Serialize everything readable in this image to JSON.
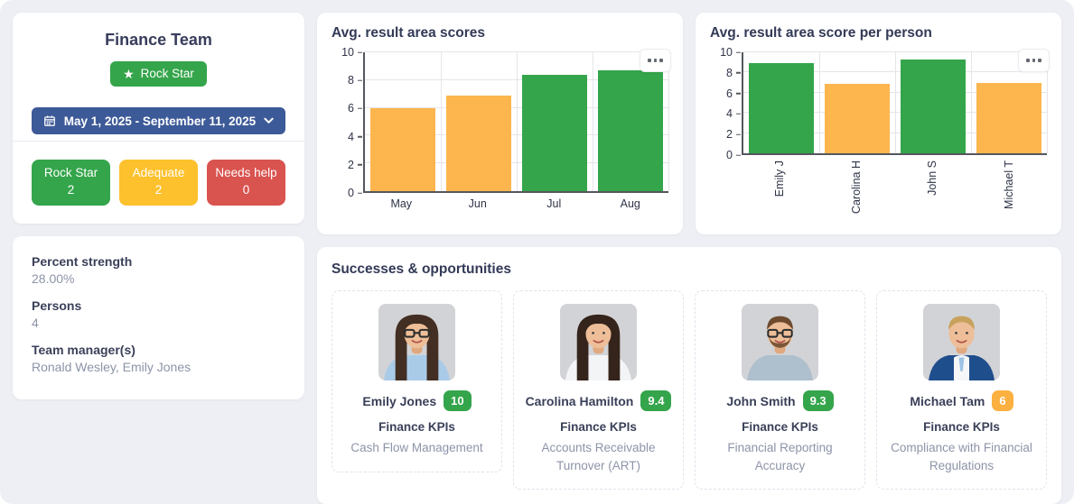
{
  "theme": {
    "page_bg": "#edeff4",
    "green": "#34a54b",
    "yellow": "#fcc12d",
    "orange": "#fbb040",
    "red": "#d9534f",
    "blue": "#3d5a98",
    "bar_orange": "#fdb54e",
    "bar_green": "#34a54b"
  },
  "team_card": {
    "title": "Finance Team",
    "status_badge": {
      "label": "Rock Star",
      "color": "#34a54b"
    },
    "date_range": {
      "label": "May 1, 2025 - September 11, 2025",
      "color": "#3d5a98"
    },
    "counters": [
      {
        "label": "Rock Star",
        "count": "2",
        "color": "#34a54b"
      },
      {
        "label": "Adequate",
        "count": "2",
        "color": "#fcc12d"
      },
      {
        "label": "Needs help",
        "count": "0",
        "color": "#d9534f"
      }
    ]
  },
  "info_card": {
    "fields": [
      {
        "label": "Percent strength",
        "value": "28.00%"
      },
      {
        "label": "Persons",
        "value": "4"
      },
      {
        "label": "Team manager(s)",
        "value": "Ronald Wesley, Emily Jones"
      }
    ]
  },
  "chart_data": [
    {
      "type": "bar",
      "title": "Avg. result area scores",
      "categories": [
        "May",
        "Jun",
        "Jul",
        "Aug"
      ],
      "values": [
        6.0,
        6.9,
        8.4,
        8.7
      ],
      "colors": [
        "#fdb54e",
        "#fdb54e",
        "#34a54b",
        "#34a54b"
      ],
      "xlabel": "",
      "ylabel": "",
      "ylim": [
        0,
        10
      ],
      "yticks": [
        0,
        2,
        4,
        6,
        8,
        10
      ],
      "grid": true,
      "xlabel_rotation": 0,
      "legend": "none"
    },
    {
      "type": "bar",
      "title": "Avg. result area score per person",
      "categories": [
        "Emily J",
        "Carolina H",
        "John S",
        "Michael T"
      ],
      "values": [
        8.9,
        6.9,
        9.3,
        7.0
      ],
      "colors": [
        "#34a54b",
        "#fdb54e",
        "#34a54b",
        "#fdb54e"
      ],
      "xlabel": "",
      "ylabel": "",
      "ylim": [
        0,
        10
      ],
      "yticks": [
        0,
        2,
        4,
        6,
        8,
        10
      ],
      "grid": true,
      "xlabel_rotation": 90,
      "legend": "none"
    }
  ],
  "successes": {
    "title": "Successes & opportunities",
    "people": [
      {
        "name": "Emily Jones",
        "score": "10",
        "score_color": "#34a54b",
        "kpi": "Finance KPIs",
        "area": "Cash Flow Management",
        "avatar": {
          "style": "long",
          "hair": "#422e22",
          "shirt": "#a9cbe8",
          "glasses": true,
          "beard": false,
          "suit": false
        }
      },
      {
        "name": "Carolina Hamilton",
        "score": "9.4",
        "score_color": "#34a54b",
        "kpi": "Finance KPIs",
        "area": "Accounts Receivable Turnover (ART)",
        "avatar": {
          "style": "long",
          "hair": "#35241b",
          "shirt": "#f3f4f6",
          "glasses": false,
          "beard": false,
          "suit": false
        }
      },
      {
        "name": "John Smith",
        "score": "9.3",
        "score_color": "#34a54b",
        "kpi": "Finance KPIs",
        "area": "Financial Reporting Accuracy",
        "avatar": {
          "style": "short",
          "hair": "#6e4b2e",
          "shirt": "#aebfcd",
          "glasses": true,
          "beard": true,
          "suit": false
        }
      },
      {
        "name": "Michael Tam",
        "score": "6",
        "score_color": "#fbb040",
        "kpi": "Finance KPIs",
        "area": "Compliance with Financial Regulations",
        "avatar": {
          "style": "short",
          "hair": "#c8a25d",
          "shirt": "#1f4e8c",
          "glasses": false,
          "beard": false,
          "suit": true
        }
      }
    ]
  }
}
